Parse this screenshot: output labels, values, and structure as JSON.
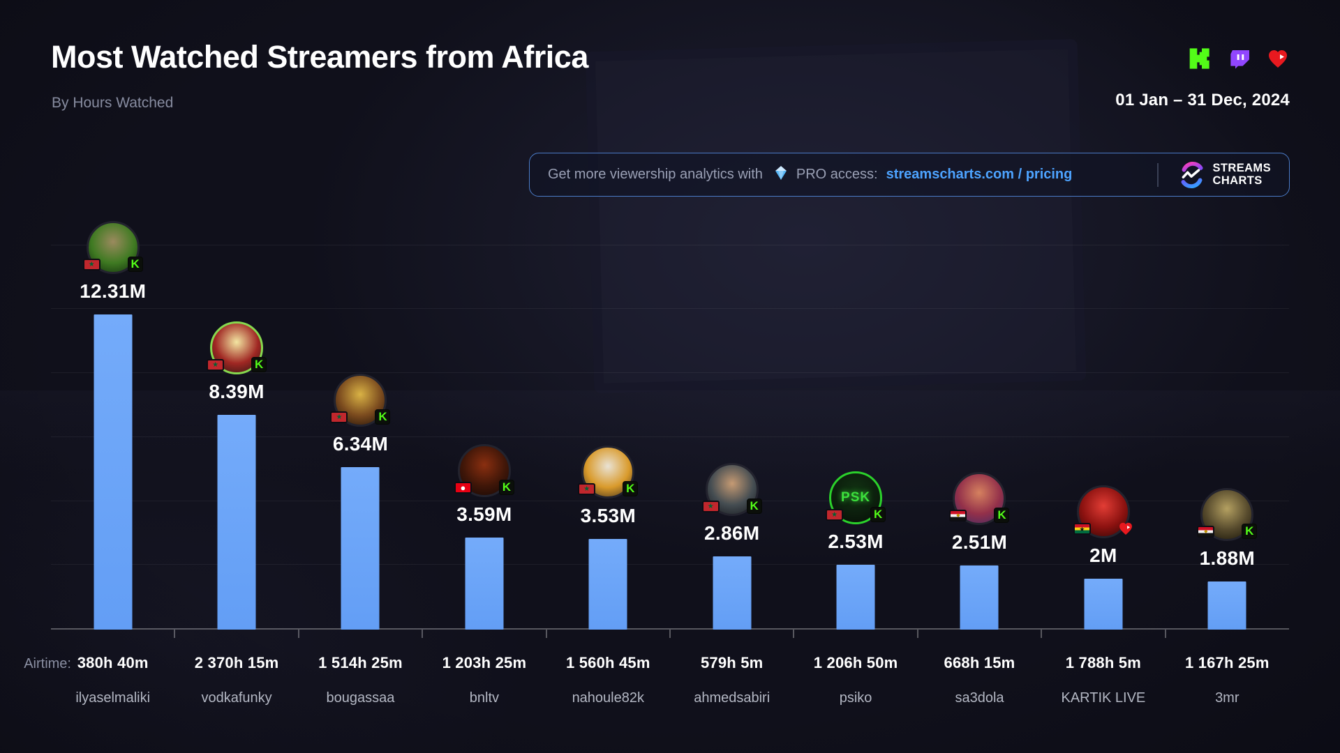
{
  "header": {
    "title": "Most Watched Streamers from Africa",
    "subtitle": "By Hours Watched",
    "date_range": "01 Jan – 31 Dec, 2024",
    "platform_icons": [
      "kick-icon",
      "twitch-icon",
      "heart-play-icon"
    ]
  },
  "promo_banner": {
    "message": "Get more viewership analytics with",
    "pro_label": "PRO access:",
    "link": "streamscharts.com / pricing",
    "brand_line1": "STREAMS",
    "brand_line2": "CHARTS"
  },
  "colors": {
    "background": "#10101b",
    "bar": "#6ba5f8",
    "link": "#4da3ff",
    "kick_green": "#53fc18",
    "twitch_purple": "#9146ff",
    "heart_red": "#e8191f",
    "banner_border": "#4b7cc9"
  },
  "chart_data": {
    "type": "bar",
    "title": "Most Watched Streamers from Africa",
    "metric": "Hours Watched",
    "unit": "millions of hours",
    "ylim": [
      0,
      15
    ],
    "gridline_interval_m": 2.5,
    "legend_position": "none",
    "airtime_label": "Airtime:",
    "categories": [
      "ilyaselmaliki",
      "vodkafunky",
      "bougassaa",
      "bnltv",
      "nahoule82k",
      "ahmedsabiri",
      "psiko",
      "sa3dola",
      "KARTIK LIVE",
      "3mr"
    ],
    "values": [
      12.31,
      8.39,
      6.34,
      3.59,
      3.53,
      2.86,
      2.53,
      2.51,
      2.0,
      1.88
    ],
    "streamers": [
      {
        "name": "ilyaselmaliki",
        "hours_watched_m": 12.31,
        "value_label": "12.31M",
        "airtime": "380h 40m",
        "country": "ma",
        "platform": "kick",
        "avatar_colors": [
          "#9b8a5e",
          "#3f7a22",
          "#0f2a0c"
        ],
        "ring": "#23232e"
      },
      {
        "name": "vodkafunky",
        "hours_watched_m": 8.39,
        "value_label": "8.39M",
        "airtime": "2 370h 15m",
        "country": "ma",
        "platform": "kick",
        "avatar_colors": [
          "#f3e6a2",
          "#a02723",
          "#211512"
        ],
        "ring": "#86d94f"
      },
      {
        "name": "bougassaa",
        "hours_watched_m": 6.34,
        "value_label": "6.34M",
        "airtime": "1 514h 25m",
        "country": "ma",
        "platform": "kick",
        "avatar_colors": [
          "#d9b245",
          "#7a4a1e",
          "#1d0f07"
        ],
        "ring": "#23232e"
      },
      {
        "name": "bnltv",
        "hours_watched_m": 3.59,
        "value_label": "3.59M",
        "airtime": "1 203h 25m",
        "country": "tn",
        "platform": "kick",
        "avatar_colors": [
          "#8a2f10",
          "#3f1608",
          "#120705"
        ],
        "ring": "#23232e"
      },
      {
        "name": "nahoule82k",
        "hours_watched_m": 3.53,
        "value_label": "3.53M",
        "airtime": "1 560h 45m",
        "country": "ma",
        "platform": "kick",
        "avatar_colors": [
          "#e9e2d4",
          "#d99a2b",
          "#3a2c1c"
        ],
        "ring": "#23232e"
      },
      {
        "name": "ahmedsabiri",
        "hours_watched_m": 2.86,
        "value_label": "2.86M",
        "airtime": "579h 5m",
        "country": "ma",
        "platform": "kick",
        "avatar_colors": [
          "#c59a73",
          "#454d52",
          "#15171c"
        ],
        "ring": "#23232e"
      },
      {
        "name": "psiko",
        "hours_watched_m": 2.53,
        "value_label": "2.53M",
        "airtime": "1 206h 50m",
        "country": "ma",
        "platform": "kick",
        "avatar_colors": [
          "#123313",
          "#0c1f0d",
          "#060d06"
        ],
        "ring": "#2bd12b",
        "avatar_text": "PSK"
      },
      {
        "name": "sa3dola",
        "hours_watched_m": 2.51,
        "value_label": "2.51M",
        "airtime": "668h 15m",
        "country": "eg",
        "platform": "kick",
        "avatar_colors": [
          "#d5815f",
          "#93304a",
          "#3f2a66"
        ],
        "ring": "#23232e"
      },
      {
        "name": "KARTIK LIVE",
        "hours_watched_m": 2.0,
        "value_label": "2M",
        "airtime": "1 788h 5m",
        "country": "gh",
        "platform": "heart",
        "avatar_colors": [
          "#e23d35",
          "#8c1210",
          "#2c0605"
        ],
        "ring": "#23232e"
      },
      {
        "name": "3mr",
        "hours_watched_m": 1.88,
        "value_label": "1.88M",
        "airtime": "1 167h 25m",
        "country": "eg",
        "platform": "kick",
        "avatar_colors": [
          "#b4a061",
          "#55492c",
          "#151207"
        ],
        "ring": "#23232e"
      }
    ]
  }
}
